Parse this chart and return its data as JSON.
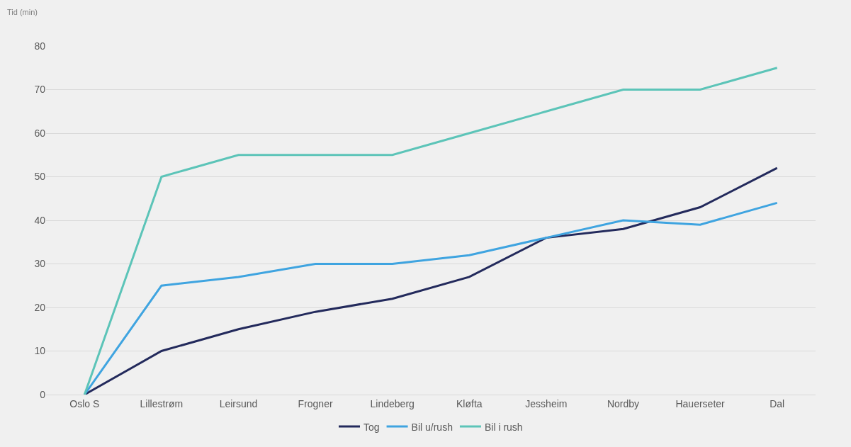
{
  "chart_data": {
    "type": "line",
    "ylabel": "Tid (min)",
    "categories": [
      "Oslo S",
      "Lillestrøm",
      "Leirsund",
      "Frogner",
      "Lindeberg",
      "Kløfta",
      "Jessheim",
      "Nordby",
      "Hauerseter",
      "Dal"
    ],
    "series": [
      {
        "name": "Tog",
        "color": "#232a5c",
        "values": [
          0,
          10,
          15,
          19,
          22,
          27,
          36,
          38,
          43,
          52
        ]
      },
      {
        "name": "Bil u/rush",
        "color": "#3fa4e0",
        "values": [
          0,
          25,
          27,
          30,
          30,
          32,
          36,
          40,
          39,
          44
        ]
      },
      {
        "name": "Bil i rush",
        "color": "#5cc4b8",
        "values": [
          0,
          50,
          55,
          55,
          55,
          60,
          65,
          70,
          70,
          75
        ]
      }
    ],
    "ylim": [
      0,
      80
    ],
    "yticks": [
      0,
      10,
      20,
      30,
      40,
      50,
      60,
      70,
      80
    ],
    "grid": "y",
    "legend": "bottom",
    "marker": "none",
    "line_style": "solid"
  }
}
